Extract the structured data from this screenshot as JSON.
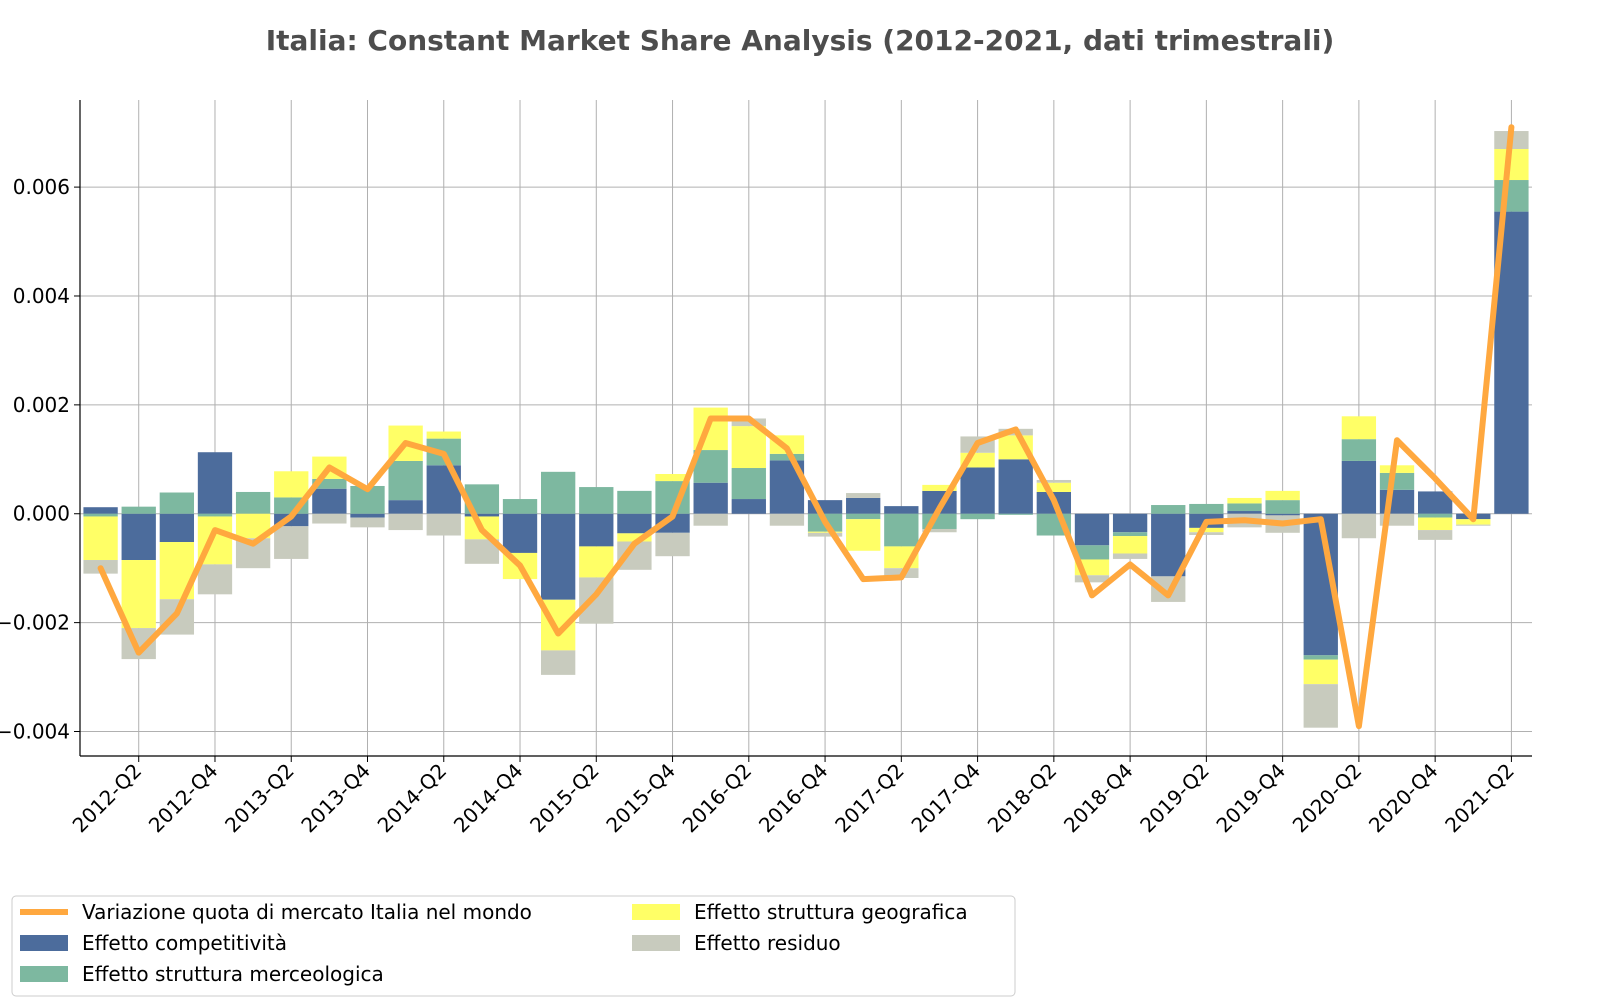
{
  "chart_data": {
    "type": "bar",
    "title": "Italia: Constant Market Share Analysis (2012-2021, dati trimestrali)",
    "xlabel": "",
    "ylabel": "",
    "ylim": [
      -0.00445,
      0.0076
    ],
    "yticks": [
      -0.004,
      -0.002,
      0.0,
      0.002,
      0.004,
      0.006
    ],
    "ytick_labels": [
      "−0.004",
      "−0.002",
      "0.000",
      "0.002",
      "0.004",
      "0.006"
    ],
    "grid": true,
    "legend_position": "bottom-left",
    "categories": [
      "2012-Q1",
      "2012-Q2",
      "2012-Q3",
      "2012-Q4",
      "2013-Q1",
      "2013-Q2",
      "2013-Q3",
      "2013-Q4",
      "2014-Q1",
      "2014-Q2",
      "2014-Q3",
      "2014-Q4",
      "2015-Q1",
      "2015-Q2",
      "2015-Q3",
      "2015-Q4",
      "2016-Q1",
      "2016-Q2",
      "2016-Q3",
      "2016-Q4",
      "2017-Q1",
      "2017-Q2",
      "2017-Q3",
      "2017-Q4",
      "2018-Q1",
      "2018-Q2",
      "2018-Q3",
      "2018-Q4",
      "2019-Q1",
      "2019-Q2",
      "2019-Q3",
      "2019-Q4",
      "2020-Q1",
      "2020-Q2",
      "2020-Q3",
      "2020-Q4",
      "2021-Q1",
      "2021-Q2"
    ],
    "shown_ticks": [
      "2012-Q2",
      "2012-Q4",
      "2013-Q2",
      "2013-Q4",
      "2014-Q2",
      "2014-Q4",
      "2015-Q2",
      "2015-Q4",
      "2016-Q2",
      "2016-Q4",
      "2017-Q2",
      "2017-Q4",
      "2018-Q2",
      "2018-Q4",
      "2019-Q2",
      "2019-Q4",
      "2020-Q2",
      "2020-Q4",
      "2021-Q2"
    ],
    "series": [
      {
        "name": "Effetto competitività",
        "color": "#4c6c9c",
        "values": [
          0.00012,
          -0.00085,
          -0.00052,
          0.00113,
          0.0,
          -0.00023,
          0.00046,
          -7e-05,
          0.00025,
          0.00089,
          -5e-05,
          -0.00072,
          -0.00158,
          -0.0006,
          -0.00036,
          -0.00035,
          0.00057,
          0.00027,
          0.00098,
          0.00025,
          0.00029,
          0.00014,
          0.00042,
          0.00085,
          0.001,
          0.0004,
          -0.00058,
          -0.00034,
          -0.00115,
          -0.00026,
          5e-05,
          -3e-05,
          -0.0026,
          0.00097,
          0.00044,
          0.00041,
          -0.0001,
          0.00555
        ]
      },
      {
        "name": "Effetto struttura merceologica",
        "color": "#7db8a0",
        "values": [
          -5e-05,
          0.00013,
          0.00039,
          -5e-05,
          0.0004,
          0.0003,
          0.00018,
          0.00051,
          0.00072,
          0.00049,
          0.00054,
          0.00027,
          0.00077,
          0.00049,
          0.00042,
          0.0006,
          0.0006,
          0.00057,
          0.00012,
          -0.00033,
          -0.0001,
          -0.0006,
          -0.00028,
          -0.0001,
          -2e-05,
          -0.0004,
          -0.00026,
          -7e-05,
          0.00016,
          0.00018,
          0.00014,
          0.00025,
          -8e-05,
          0.0004,
          0.00031,
          -7e-05,
          0.0,
          0.00058
        ]
      },
      {
        "name": "Effetto struttura geografica",
        "color": "#ffff66",
        "values": [
          -0.0008,
          -0.00125,
          -0.00105,
          -0.00088,
          -0.00045,
          0.00048,
          0.00041,
          0.0,
          0.00065,
          0.00013,
          -0.00042,
          -0.00048,
          -0.00093,
          -0.00057,
          -0.00015,
          0.00013,
          0.00078,
          0.00077,
          0.00034,
          -2e-05,
          -0.00058,
          -0.0004,
          0.00011,
          0.00027,
          0.00044,
          0.00017,
          -0.00029,
          -0.00032,
          0.0,
          -8e-05,
          0.0001,
          0.00017,
          -0.00045,
          0.00042,
          0.00014,
          -0.00023,
          -0.0001,
          0.00057
        ]
      },
      {
        "name": "Effetto residuo",
        "color": "#c8cbbe",
        "values": [
          -0.00025,
          -0.00057,
          -0.00065,
          -0.00055,
          -0.00055,
          -0.0006,
          -0.00018,
          -0.00018,
          -0.0003,
          -0.0004,
          -0.00045,
          0.0,
          -0.00045,
          -0.00085,
          -0.00052,
          -0.00043,
          -0.00022,
          0.00014,
          -0.00022,
          -7e-05,
          9e-05,
          -0.00018,
          -6e-05,
          0.0003,
          0.00012,
          5e-05,
          -0.00013,
          -0.0001,
          -0.00047,
          -5e-05,
          -0.00025,
          -0.00032,
          -0.0008,
          -0.00045,
          -0.00022,
          -0.00018,
          -2e-05,
          0.00033
        ]
      },
      {
        "name": "Variazione quota di mercato Italia nel mondo",
        "color": "#ffa83f",
        "values": [
          -0.001,
          -0.00255,
          -0.00183,
          -0.0003,
          -0.00055,
          -5e-05,
          0.00085,
          0.00045,
          0.0013,
          0.0011,
          -0.0003,
          -0.00095,
          -0.0022,
          -0.00148,
          -0.00055,
          -5e-05,
          0.00175,
          0.00175,
          0.0012,
          -0.00015,
          -0.0012,
          -0.00117,
          0.0001,
          0.0013,
          0.00155,
          0.00025,
          -0.0015,
          -0.00093,
          -0.0015,
          -0.00015,
          -0.00012,
          -0.00018,
          -0.0001,
          -0.0039,
          0.00135,
          0.00065,
          -0.0001,
          0.0071
        ]
      }
    ]
  }
}
